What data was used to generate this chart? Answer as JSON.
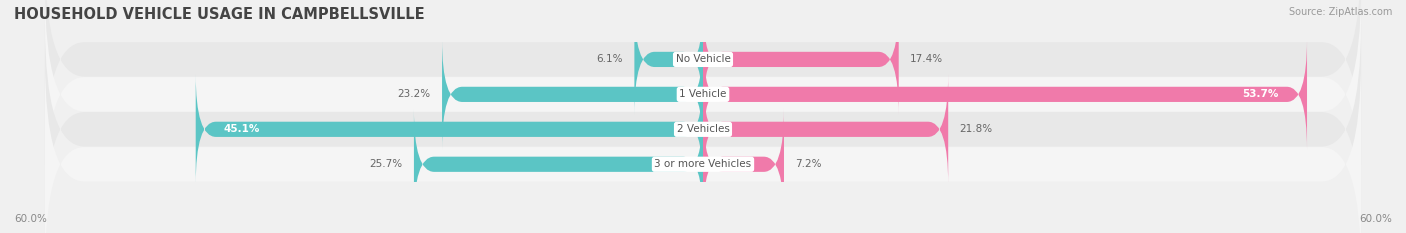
{
  "title": "HOUSEHOLD VEHICLE USAGE IN CAMPBELLSVILLE",
  "source": "Source: ZipAtlas.com",
  "categories": [
    "No Vehicle",
    "1 Vehicle",
    "2 Vehicles",
    "3 or more Vehicles"
  ],
  "owner_values": [
    6.1,
    23.2,
    45.1,
    25.7
  ],
  "renter_values": [
    17.4,
    53.7,
    21.8,
    7.2
  ],
  "max_val": 60.0,
  "owner_color": "#5bc5c5",
  "renter_color": "#f07aaa",
  "renter_color_dark": "#e8609a",
  "bg_color": "#f0f0f0",
  "row_bg": "#e8e8e8",
  "row_bg2": "#f5f5f5",
  "axis_label": "60.0%",
  "title_fontsize": 10.5,
  "source_fontsize": 7,
  "label_fontsize": 7.5,
  "category_fontsize": 7.5,
  "value_fontsize": 7.5
}
